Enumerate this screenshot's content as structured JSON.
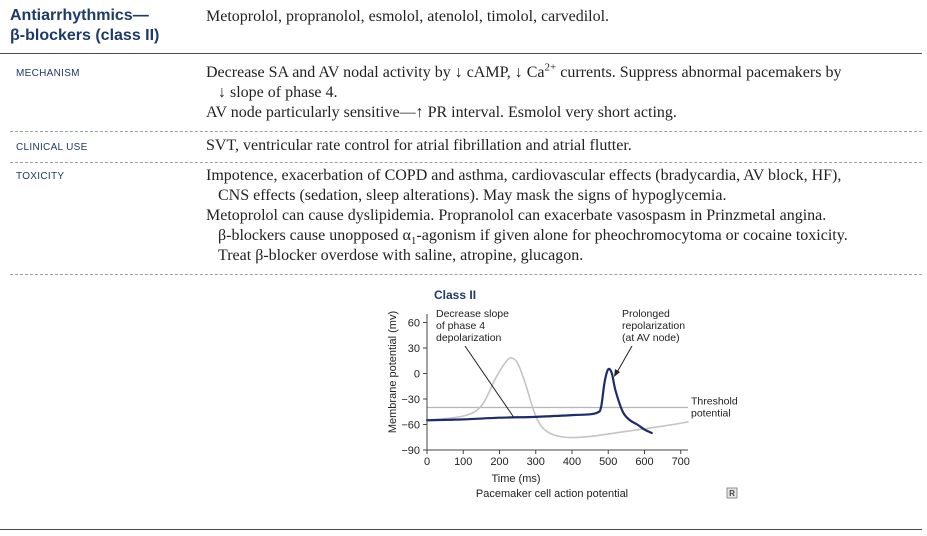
{
  "header": {
    "title_line1": "Antiarrhythmics—",
    "title_line2": "β-blockers (class II)",
    "drugs": "Metoprolol, propranolol, esmolol, atenolol, timolol, carvedilol."
  },
  "sections": [
    {
      "label": "MECHANISM",
      "line1_a": "Decrease SA and AV nodal activity by ",
      "arrow_down1": "↓",
      "line1_b": " cAMP, ",
      "arrow_down2": "↓",
      "line1_c": " Ca",
      "line1_sup": "2+",
      "line1_d": " currents. Suppress abnormal pacemakers by",
      "line2_arrow": "↓",
      "line2": " slope of phase 4.",
      "line3_a": "AV node particularly sensitive—",
      "line3_arrow": "↑",
      "line3_b": " PR interval. Esmolol very short acting."
    },
    {
      "label": "CLINICAL USE",
      "text": "SVT, ventricular rate control for atrial fibrillation and atrial flutter."
    },
    {
      "label": "TOXICITY",
      "p1_line1": "Impotence, exacerbation of COPD and asthma, cardiovascular effects (bradycardia, AV block, HF),",
      "p1_line2": "CNS effects (sedation, sleep alterations). May mask the signs of hypoglycemia.",
      "p2_line1": "Metoprolol can cause dyslipidemia. Propranolol can exacerbate vasospasm in Prinzmetal angina.",
      "p2_line2_a": "β-blockers cause unopposed α",
      "p2_line2_sub": "1",
      "p2_line2_b": "-agonism if given alone for pheochromocytoma or cocaine toxicity.",
      "p2_line3": "Treat β-blocker overdose with saline, atropine, glucagon."
    }
  ],
  "chart_data": {
    "type": "line",
    "title": "Class II",
    "xlabel": "Time (ms)",
    "ylabel": "Membrane potential (mv)",
    "caption": "Pacemaker cell action potential",
    "xlim": [
      0,
      720
    ],
    "ylim": [
      -90,
      70
    ],
    "x_ticks": [
      0,
      100,
      200,
      300,
      400,
      500,
      600,
      700
    ],
    "y_ticks": [
      60,
      30,
      0,
      -30,
      -60,
      -90
    ],
    "y_tick_labels": [
      "60",
      "30",
      "0",
      "−30",
      "−60",
      "−90"
    ],
    "threshold": {
      "y": -40,
      "label_line1": "Threshold",
      "label_line2": "potential"
    },
    "series": [
      {
        "role": "normal",
        "color": "#c4c4c4",
        "x": [
          0,
          100,
          150,
          190,
          220,
          235,
          250,
          270,
          300,
          330,
          380,
          450,
          550,
          650,
          720
        ],
        "y": [
          -55,
          -50,
          -38,
          -5,
          15,
          18,
          12,
          -10,
          -50,
          -68,
          -75,
          -74,
          -68,
          -62,
          -57
        ]
      },
      {
        "role": "class-ii",
        "color": "#1d2a6b",
        "x": [
          0,
          100,
          200,
          300,
          400,
          450,
          470,
          480,
          490,
          500,
          510,
          520,
          540,
          560,
          580,
          600,
          620
        ],
        "y": [
          -55,
          -54,
          -52,
          -51,
          -49,
          -48,
          -46,
          -40,
          -10,
          5,
          0,
          -20,
          -45,
          -55,
          -60,
          -66,
          -70
        ]
      }
    ],
    "annotations": [
      {
        "line1": "Decrease slope",
        "line2": "of phase 4",
        "line3": "depolarization"
      },
      {
        "line1": "Prolonged",
        "line2": "repolarization",
        "line3": "(at AV node)"
      }
    ],
    "corner_mark": "R"
  }
}
